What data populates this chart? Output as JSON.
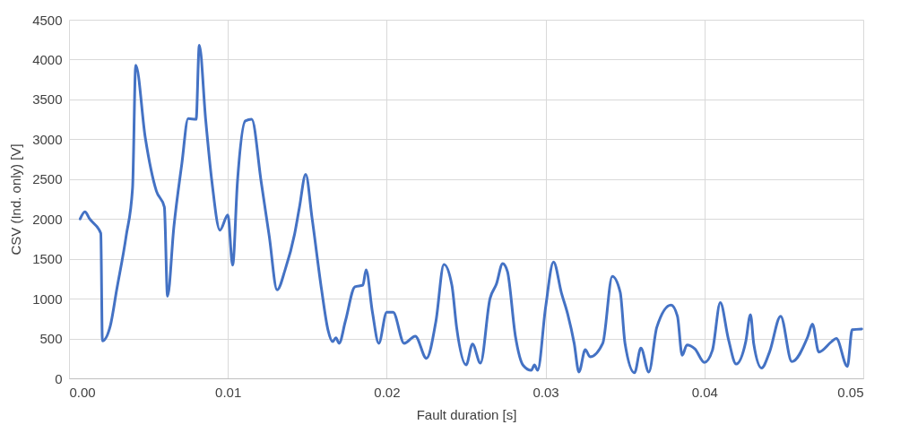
{
  "chart_data": {
    "type": "line",
    "xlabel": "Fault duration [s]",
    "ylabel": "CSV (Ind. only) [V]",
    "xlim": [
      0,
      0.05
    ],
    "xticks": [
      {
        "value": 0,
        "label": "0.00"
      },
      {
        "value": 0.01,
        "label": "0.01"
      },
      {
        "value": 0.02,
        "label": "0.02"
      },
      {
        "value": 0.03,
        "label": "0.03"
      },
      {
        "value": 0.04,
        "label": "0.04"
      },
      {
        "value": 0.05,
        "label": "0.05"
      }
    ],
    "ylim": [
      0,
      4500
    ],
    "yticks": [
      0,
      500,
      1000,
      1500,
      2000,
      2500,
      3000,
      3500,
      4000,
      4500
    ],
    "grid": true,
    "marker": "none",
    "line_style": "solid",
    "x": [
      0.0007,
      0.001,
      0.0013,
      0.002,
      0.0021,
      0.0026,
      0.003,
      0.0036,
      0.004,
      0.0042,
      0.0048,
      0.0055,
      0.006,
      0.0062,
      0.0066,
      0.0071,
      0.0075,
      0.008,
      0.0082,
      0.0086,
      0.009,
      0.0095,
      0.01,
      0.0103,
      0.0106,
      0.0111,
      0.0115,
      0.0121,
      0.0126,
      0.0131,
      0.0136,
      0.0142,
      0.0145,
      0.0149,
      0.0153,
      0.0159,
      0.0163,
      0.0166,
      0.0168,
      0.017,
      0.0174,
      0.018,
      0.0185,
      0.0187,
      0.0191,
      0.0195,
      0.02,
      0.0204,
      0.0211,
      0.0218,
      0.0225,
      0.0231,
      0.0236,
      0.0241,
      0.0244,
      0.025,
      0.0254,
      0.0259,
      0.0265,
      0.0269,
      0.0273,
      0.0276,
      0.0281,
      0.0286,
      0.0291,
      0.0293,
      0.0295,
      0.03,
      0.0305,
      0.031,
      0.0314,
      0.0318,
      0.0321,
      0.0325,
      0.0328,
      0.0336,
      0.0342,
      0.0347,
      0.035,
      0.0356,
      0.036,
      0.0365,
      0.037,
      0.0379,
      0.0383,
      0.0386,
      0.0389,
      0.0394,
      0.04,
      0.0405,
      0.041,
      0.0415,
      0.042,
      0.0426,
      0.0429,
      0.0431,
      0.0436,
      0.0441,
      0.0448,
      0.0455,
      0.0465,
      0.0468,
      0.0472,
      0.048,
      0.0483,
      0.049,
      0.0493,
      0.0499
    ],
    "series": [
      {
        "color": "#4472c4",
        "values": [
          2000,
          2090,
          2000,
          1820,
          470,
          660,
          1110,
          1790,
          2390,
          3930,
          3020,
          2350,
          2150,
          1030,
          1900,
          2690,
          3260,
          3250,
          4180,
          3250,
          2460,
          1860,
          2050,
          1420,
          2460,
          3230,
          3250,
          2460,
          1790,
          1110,
          1360,
          1810,
          2140,
          2560,
          2010,
          1110,
          610,
          460,
          510,
          440,
          720,
          1150,
          1170,
          1360,
          830,
          440,
          830,
          830,
          440,
          530,
          250,
          720,
          1430,
          1170,
          640,
          170,
          430,
          190,
          1000,
          1180,
          1440,
          1340,
          530,
          160,
          100,
          170,
          100,
          890,
          1460,
          1070,
          800,
          440,
          80,
          360,
          270,
          440,
          1280,
          1080,
          440,
          70,
          380,
          80,
          640,
          920,
          780,
          290,
          420,
          370,
          200,
          350,
          950,
          500,
          180,
          460,
          800,
          440,
          130,
          330,
          780,
          210,
          520,
          680,
          330,
          460,
          500,
          150,
          610,
          620
        ]
      }
    ]
  }
}
